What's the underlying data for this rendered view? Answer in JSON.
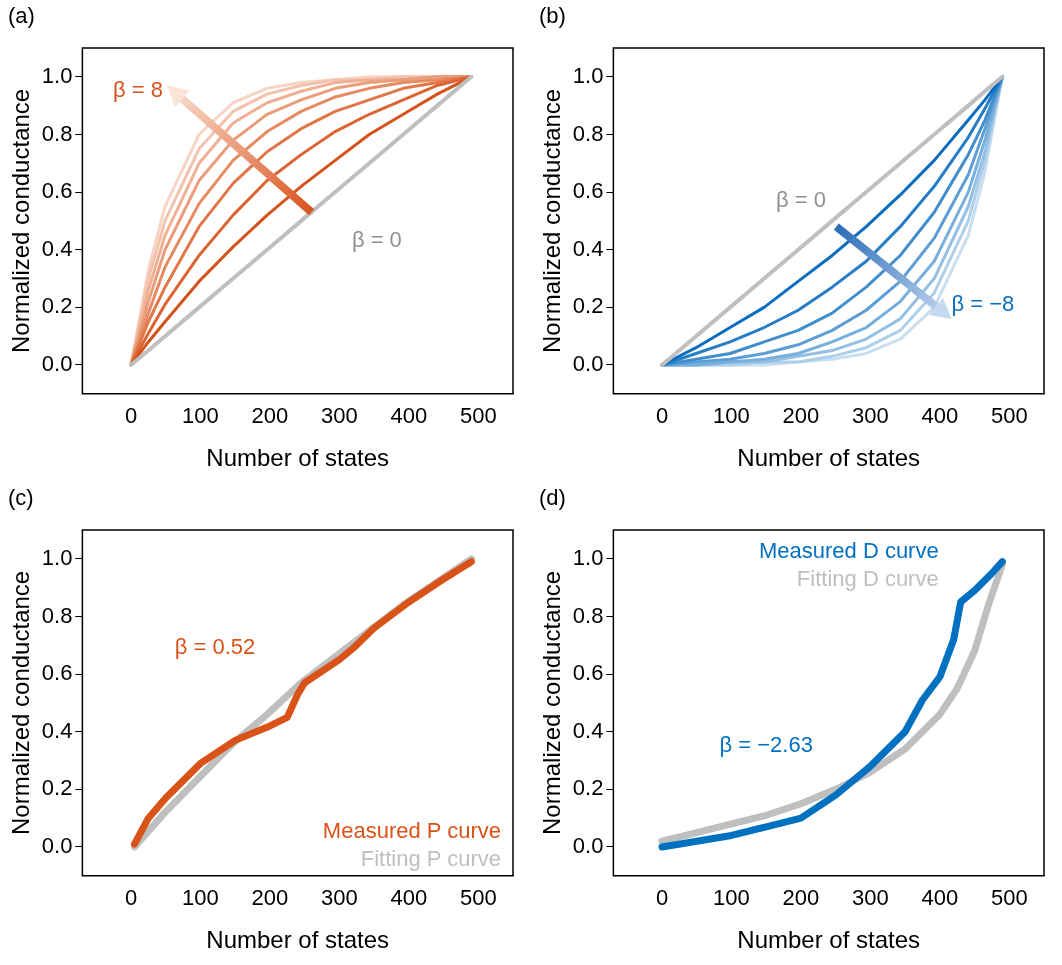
{
  "chart_data": [
    {
      "type": "line",
      "title": "(a)",
      "xlabel": "Number of states",
      "ylabel": "Normalized conductance",
      "x": [
        0,
        25,
        49,
        98,
        147,
        196,
        245,
        294,
        343,
        392,
        441,
        490
      ],
      "xlim": [
        -70,
        550
      ],
      "xticks": [
        0,
        100,
        200,
        300,
        400,
        500
      ],
      "ylim": [
        -0.1,
        1.1
      ],
      "yticks": [
        {
          "value": 0,
          "label": "0.0"
        },
        {
          "value": 0.2,
          "label": "0.2"
        },
        {
          "value": 0.4,
          "label": "0.4"
        },
        {
          "value": 0.6,
          "label": "0.6"
        },
        {
          "value": 0.8,
          "label": "0.8"
        },
        {
          "value": 1,
          "label": "1.0"
        }
      ],
      "annotations": [
        "β = 0",
        "β = 8"
      ],
      "series": [
        {
          "color": "#bfbfbf",
          "values": [
            0,
            0.05,
            0.1,
            0.2,
            0.3,
            0.4,
            0.5,
            0.6,
            0.7,
            0.8,
            0.9,
            1
          ]
        },
        {
          "color": "#d4521c",
          "values": [
            0,
            0.08,
            0.15,
            0.29,
            0.41,
            0.52,
            0.62,
            0.71,
            0.8,
            0.87,
            0.94,
            1
          ]
        },
        {
          "color": "#dc6432",
          "values": [
            0,
            0.11,
            0.21,
            0.38,
            0.52,
            0.64,
            0.73,
            0.81,
            0.87,
            0.92,
            0.97,
            1
          ]
        },
        {
          "color": "#e17749",
          "values": [
            0,
            0.15,
            0.27,
            0.48,
            0.63,
            0.74,
            0.82,
            0.88,
            0.92,
            0.96,
            0.98,
            1
          ]
        },
        {
          "color": "#e68a61",
          "values": [
            0,
            0.18,
            0.34,
            0.56,
            0.71,
            0.81,
            0.88,
            0.93,
            0.96,
            0.98,
            0.99,
            1
          ]
        },
        {
          "color": "#ea9d7a",
          "values": [
            0,
            0.22,
            0.4,
            0.64,
            0.78,
            0.87,
            0.92,
            0.96,
            0.98,
            0.99,
            1,
            1
          ]
        },
        {
          "color": "#efb093",
          "values": [
            0,
            0.26,
            0.45,
            0.7,
            0.84,
            0.91,
            0.95,
            0.98,
            0.99,
            0.99,
            1,
            1
          ]
        },
        {
          "color": "#f3c2ac",
          "values": [
            0,
            0.3,
            0.5,
            0.75,
            0.88,
            0.94,
            0.97,
            0.99,
            0.99,
            1,
            1,
            1
          ]
        },
        {
          "color": "#f7d4c4",
          "values": [
            0,
            0.33,
            0.55,
            0.8,
            0.91,
            0.96,
            0.98,
            0.99,
            1,
            1,
            1,
            1
          ]
        }
      ]
    },
    {
      "type": "line",
      "title": "(b)",
      "xlabel": "Number of states",
      "ylabel": "Normalized conductance",
      "x": [
        0,
        49,
        98,
        147,
        196,
        245,
        294,
        343,
        392,
        441,
        465,
        490
      ],
      "xlim": [
        -70,
        550
      ],
      "xticks": [
        0,
        100,
        200,
        300,
        400,
        500
      ],
      "ylim": [
        -0.1,
        1.1
      ],
      "yticks": [
        {
          "value": 0,
          "label": "0.0"
        },
        {
          "value": 0.2,
          "label": "0.2"
        },
        {
          "value": 0.4,
          "label": "0.4"
        },
        {
          "value": 0.6,
          "label": "0.6"
        },
        {
          "value": 0.8,
          "label": "0.8"
        },
        {
          "value": 1,
          "label": "1.0"
        }
      ],
      "annotations": [
        "β = 0",
        "β = −8"
      ],
      "series": [
        {
          "color": "#bfbfbf",
          "values": [
            0,
            0.1,
            0.2,
            0.3,
            0.4,
            0.5,
            0.6,
            0.7,
            0.8,
            0.9,
            0.95,
            1
          ]
        },
        {
          "color": "#0a6dbf",
          "values": [
            0,
            0.06,
            0.13,
            0.2,
            0.29,
            0.38,
            0.48,
            0.59,
            0.71,
            0.85,
            0.92,
            1
          ]
        },
        {
          "color": "#267dc6",
          "values": [
            0,
            0.04,
            0.08,
            0.13,
            0.19,
            0.27,
            0.36,
            0.48,
            0.62,
            0.79,
            0.89,
            1
          ]
        },
        {
          "color": "#418ecd",
          "values": [
            0,
            0.02,
            0.04,
            0.08,
            0.12,
            0.18,
            0.27,
            0.38,
            0.53,
            0.73,
            0.85,
            1
          ]
        },
        {
          "color": "#5c9ed5",
          "values": [
            0,
            0.01,
            0.02,
            0.04,
            0.07,
            0.12,
            0.19,
            0.29,
            0.44,
            0.66,
            0.82,
            1
          ]
        },
        {
          "color": "#77afdc",
          "values": [
            0,
            0,
            0.01,
            0.02,
            0.04,
            0.08,
            0.13,
            0.22,
            0.36,
            0.6,
            0.78,
            1
          ]
        },
        {
          "color": "#92bfe3",
          "values": [
            0,
            0,
            0.01,
            0.01,
            0.03,
            0.05,
            0.09,
            0.16,
            0.3,
            0.55,
            0.74,
            1
          ]
        },
        {
          "color": "#adcfea",
          "values": [
            0,
            0,
            0,
            0.01,
            0.01,
            0.03,
            0.06,
            0.12,
            0.25,
            0.5,
            0.71,
            1
          ]
        },
        {
          "color": "#c8dff2",
          "values": [
            0,
            0,
            0,
            0,
            0.01,
            0.02,
            0.04,
            0.09,
            0.2,
            0.45,
            0.67,
            1
          ]
        }
      ]
    },
    {
      "type": "line",
      "title": "(c)",
      "xlabel": "Number of states",
      "ylabel": "Normalized conductance",
      "xlim": [
        -70,
        550
      ],
      "xticks": [
        0,
        100,
        200,
        300,
        400,
        500
      ],
      "ylim": [
        -0.1,
        1.1
      ],
      "yticks": [
        {
          "value": 0,
          "label": "0.0"
        },
        {
          "value": 0.2,
          "label": "0.2"
        },
        {
          "value": 0.4,
          "label": "0.4"
        },
        {
          "value": 0.6,
          "label": "0.6"
        },
        {
          "value": 0.8,
          "label": "0.8"
        },
        {
          "value": 1,
          "label": "1.0"
        }
      ],
      "legend": "bottom right",
      "annotations": [
        "β = 0.52"
      ],
      "series": [
        {
          "name": "Measured P curve",
          "color": "#d95319",
          "x": [
            5,
            25,
            50,
            100,
            150,
            180,
            200,
            225,
            240,
            250,
            300,
            320,
            350,
            400,
            450,
            490
          ],
          "values": [
            0.01,
            0.1,
            0.17,
            0.29,
            0.37,
            0.4,
            0.42,
            0.45,
            0.53,
            0.57,
            0.65,
            0.69,
            0.76,
            0.85,
            0.93,
            0.99
          ]
        },
        {
          "name": "Fitting P curve",
          "color": "#bfbfbf",
          "x": [
            5,
            49,
            98,
            147,
            196,
            245,
            294,
            343,
            392,
            441,
            490
          ],
          "values": [
            0,
            0.12,
            0.24,
            0.36,
            0.46,
            0.57,
            0.66,
            0.75,
            0.84,
            0.92,
            1
          ]
        }
      ]
    },
    {
      "type": "line",
      "title": "(d)",
      "xlabel": "Number of states",
      "ylabel": "Normalized conductance",
      "xlim": [
        -70,
        550
      ],
      "xticks": [
        0,
        100,
        200,
        300,
        400,
        500
      ],
      "ylim": [
        -0.1,
        1.1
      ],
      "yticks": [
        {
          "value": 0,
          "label": "0.0"
        },
        {
          "value": 0.2,
          "label": "0.2"
        },
        {
          "value": 0.4,
          "label": "0.4"
        },
        {
          "value": 0.6,
          "label": "0.6"
        },
        {
          "value": 0.8,
          "label": "0.8"
        },
        {
          "value": 1,
          "label": "1.0"
        }
      ],
      "legend": "top",
      "annotations": [
        "β = −2.63"
      ],
      "series": [
        {
          "name": "Measured D curve",
          "color": "#0070c0",
          "x": [
            0,
            50,
            100,
            150,
            200,
            250,
            300,
            350,
            375,
            400,
            420,
            430,
            450,
            475,
            490
          ],
          "values": [
            0,
            0.02,
            0.04,
            0.07,
            0.1,
            0.18,
            0.28,
            0.4,
            0.51,
            0.59,
            0.72,
            0.85,
            0.89,
            0.95,
            0.99
          ]
        },
        {
          "name": "Fitting D curve",
          "color": "#bfbfbf",
          "x": [
            0,
            50,
            100,
            150,
            200,
            250,
            300,
            350,
            400,
            425,
            450,
            470,
            490
          ],
          "values": [
            0.02,
            0.05,
            0.08,
            0.11,
            0.15,
            0.2,
            0.26,
            0.34,
            0.46,
            0.55,
            0.68,
            0.84,
            0.98
          ]
        }
      ]
    }
  ]
}
